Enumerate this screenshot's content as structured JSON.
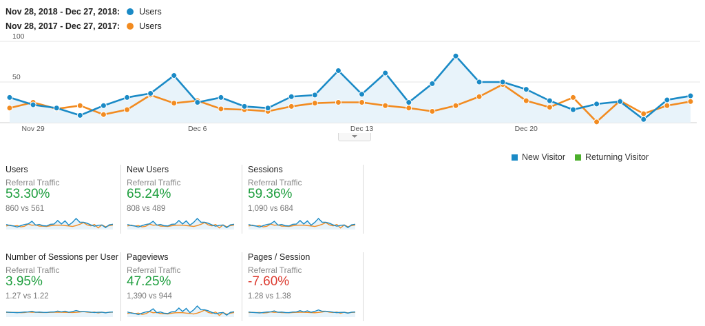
{
  "legend": {
    "current": {
      "range": "Nov 28, 2018 - Dec 27, 2018:",
      "metric": "Users",
      "color": "#1a8ac6"
    },
    "previous": {
      "range": "Nov 28, 2017 - Dec 27, 2017:",
      "metric": "Users",
      "color": "#f28b20"
    }
  },
  "chart_data": {
    "type": "line",
    "x": [
      "Nov 28",
      "Nov 29",
      "Nov 30",
      "Dec 1",
      "Dec 2",
      "Dec 3",
      "Dec 4",
      "Dec 5",
      "Dec 6",
      "Dec 7",
      "Dec 8",
      "Dec 9",
      "Dec 10",
      "Dec 11",
      "Dec 12",
      "Dec 13",
      "Dec 14",
      "Dec 15",
      "Dec 16",
      "Dec 17",
      "Dec 18",
      "Dec 19",
      "Dec 20",
      "Dec 21",
      "Dec 22",
      "Dec 23",
      "Dec 24",
      "Dec 25",
      "Dec 26",
      "Dec 27"
    ],
    "x_tick_labels": [
      "Nov 29",
      "Dec 6",
      "Dec 13",
      "Dec 20"
    ],
    "y_tick_labels": [
      "100",
      "50"
    ],
    "ylim": [
      0,
      100
    ],
    "grid": true,
    "series": [
      {
        "name": "Users",
        "values": [
          31,
          22,
          18,
          9,
          21,
          31,
          36,
          58,
          25,
          31,
          20,
          18,
          32,
          34,
          64,
          35,
          61,
          25,
          48,
          82,
          50,
          50,
          41,
          27,
          16,
          23,
          26,
          4,
          28,
          33
        ]
      },
      {
        "name": "Users",
        "values": [
          18,
          25,
          17,
          21,
          10,
          16,
          34,
          24,
          27,
          17,
          16,
          14,
          20,
          24,
          25,
          25,
          21,
          18,
          14,
          21,
          32,
          47,
          27,
          19,
          31,
          1,
          27,
          11,
          21,
          26
        ]
      }
    ]
  },
  "pie_legend": [
    {
      "label": "New Visitor",
      "color": "#1a8ac6"
    },
    {
      "label": "Returning Visitor",
      "color": "#4caf2c"
    }
  ],
  "cards": [
    {
      "title": "Users",
      "segment": "Referral Traffic",
      "pct": "53.30%",
      "cmp": "860 vs 561",
      "positive": true
    },
    {
      "title": "New Users",
      "segment": "Referral Traffic",
      "pct": "65.24%",
      "cmp": "808 vs 489",
      "positive": true
    },
    {
      "title": "Sessions",
      "segment": "Referral Traffic",
      "pct": "59.36%",
      "cmp": "1,090 vs 684",
      "positive": true
    },
    {
      "title": "Number of Sessions per User",
      "segment": "Referral Traffic",
      "pct": "3.95%",
      "cmp": "1.27 vs 1.22",
      "positive": true
    },
    {
      "title": "Pageviews",
      "segment": "Referral Traffic",
      "pct": "47.25%",
      "cmp": "1,390 vs 944",
      "positive": true
    },
    {
      "title": "Pages / Session",
      "segment": "Referral Traffic",
      "pct": "-7.60%",
      "cmp": "1.28 vs 1.38",
      "positive": false
    }
  ]
}
